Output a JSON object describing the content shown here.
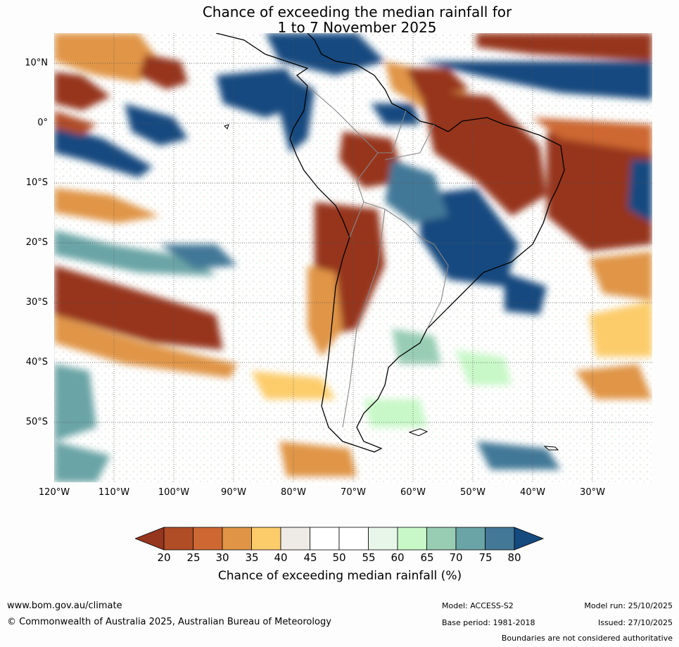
{
  "title": {
    "line1": "Chance of exceeding the median rainfall for",
    "line2": "1 to 7 November 2025"
  },
  "map": {
    "region": "South America",
    "lat_labels": [
      "10°N",
      "0°",
      "10°S",
      "20°S",
      "30°S",
      "40°S",
      "50°S"
    ],
    "lon_labels": [
      "120°W",
      "110°W",
      "100°W",
      "90°W",
      "80°W",
      "70°W",
      "60°W",
      "50°W",
      "40°W",
      "30°W"
    ]
  },
  "colorbar": {
    "ticks": [
      "20",
      "25",
      "30",
      "35",
      "40",
      "45",
      "50",
      "55",
      "60",
      "65",
      "70",
      "75",
      "80"
    ],
    "colors": [
      "#96361f",
      "#b04c26",
      "#cd6833",
      "#e09546",
      "#fccc6a",
      "#eeebe6",
      "#ffffff",
      "#ffffff",
      "#e8f5e9",
      "#c8f8c8",
      "#98cdb4",
      "#6aa4a6",
      "#437897",
      "#154a7f"
    ],
    "label": "Chance of exceeding median rainfall (%)"
  },
  "footer": {
    "website": "www.bom.gov.au/climate",
    "copyright": "© Commonwealth of Australia 2025, Australian Bureau of Meteorology",
    "model": "Model: ACCESS-S2",
    "base_period": "Base period: 1981-2018",
    "model_run": "Model run: 25/10/2025",
    "issued": "Issued: 27/10/2025",
    "disclaimer": "Boundaries are not considered authoritative"
  }
}
